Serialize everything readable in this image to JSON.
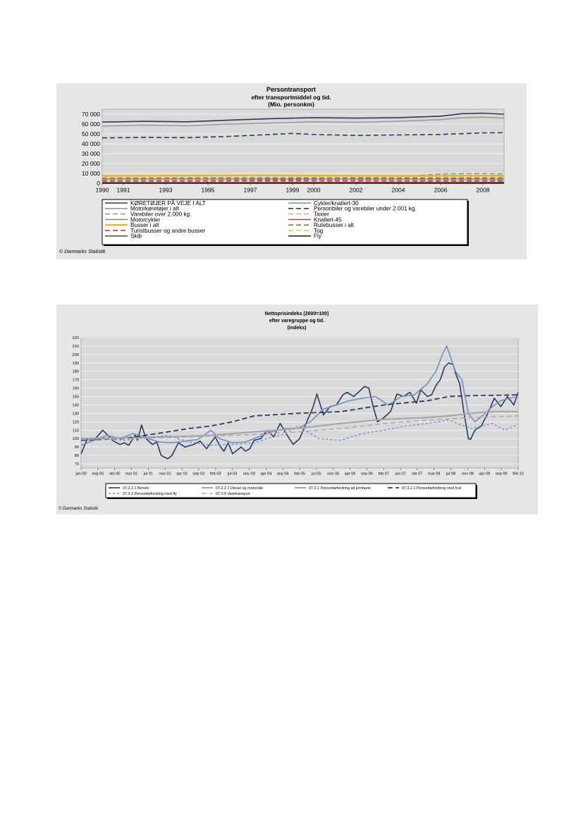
{
  "chart_data": [
    {
      "type": "line",
      "title": "Persontransport",
      "subtitle": "efter transportmiddel og tid.",
      "unit_label": "(Mio. personkm)",
      "xlabel": "",
      "ylabel": "",
      "x_ticks": [
        "1990",
        "1991",
        "1993",
        "1995",
        "1997",
        "1999",
        "2000",
        "2002",
        "2004",
        "2006",
        "2008"
      ],
      "y_ticks": [
        "70 000",
        "60 000",
        "50 000",
        "40 000",
        "30 000",
        "20 000",
        "10 000",
        "0"
      ],
      "xlim": [
        1990,
        2009
      ],
      "ylim": [
        0,
        75000
      ],
      "grid": true,
      "legend_position": "bottom",
      "credit": "© Danmarks Statistik",
      "series": [
        {
          "name": "KØRETØJER PÅ VEJE I ALT",
          "color": "#2b3a5c",
          "dash": "solid",
          "width": 1.6,
          "x": [
            1990,
            1992,
            1994,
            1996,
            1998,
            2000,
            2002,
            2004,
            2006,
            2007,
            2008,
            2009
          ],
          "y": [
            62000,
            62800,
            62300,
            64000,
            65500,
            66500,
            66000,
            66500,
            68000,
            70500,
            71000,
            70000
          ]
        },
        {
          "name": "Cykler/knallert-30",
          "color": "#6f8fc6",
          "dash": "solid",
          "width": 1.4,
          "x": [
            1990,
            1995,
            2000,
            2005,
            2009
          ],
          "y": [
            4300,
            4300,
            4200,
            4100,
            4000
          ]
        },
        {
          "name": "Motorkøretøjer i alt",
          "color": "#9a9a9a",
          "dash": "solid",
          "width": 1.6,
          "x": [
            1990,
            1992,
            1994,
            1996,
            1998,
            2000,
            2002,
            2004,
            2006,
            2007,
            2008,
            2009
          ],
          "y": [
            58000,
            59000,
            58300,
            60000,
            61000,
            62300,
            61800,
            62800,
            64500,
            66500,
            67000,
            66000
          ]
        },
        {
          "name": "Personbiler og varebiler under 2.001 kg.",
          "color": "#2b3a5c",
          "dash": "long",
          "width": 1.6,
          "x": [
            1990,
            1992,
            1994,
            1996,
            1998,
            1999,
            2000,
            2002,
            2004,
            2006,
            2008,
            2009
          ],
          "y": [
            46000,
            46500,
            46200,
            47500,
            49500,
            50500,
            49500,
            48500,
            49000,
            49500,
            51000,
            51200
          ]
        },
        {
          "name": "Varebiler over 2.000 kg.",
          "color": "#6f8fc6",
          "dash": "long",
          "width": 1.4,
          "x": [
            1990,
            1995,
            2000,
            2003,
            2005,
            2006,
            2008,
            2009
          ],
          "y": [
            1500,
            2500,
            4000,
            6000,
            8000,
            9500,
            9800,
            9500
          ]
        },
        {
          "name": "Taxier",
          "color": "#a8a8a8",
          "dash": "long",
          "width": 1.4,
          "x": [
            1990,
            1995,
            2000,
            2005,
            2009
          ],
          "y": [
            1400,
            1500,
            1500,
            1600,
            1600
          ]
        },
        {
          "name": "Motorcykler",
          "color": "#7f8c20",
          "dash": "solid",
          "width": 1.4,
          "x": [
            1990,
            1995,
            2000,
            2005,
            2009
          ],
          "y": [
            700,
            800,
            900,
            1000,
            1000
          ]
        },
        {
          "name": "Knallert-45",
          "color": "#d62a1a",
          "dash": "solid",
          "width": 1.4,
          "x": [
            1990,
            1995,
            2000,
            2005,
            2009
          ],
          "y": [
            300,
            400,
            600,
            500,
            400
          ]
        },
        {
          "name": "Busser i alt",
          "color": "#f0b010",
          "dash": "solid",
          "width": 2.2,
          "x": [
            1990,
            1994,
            1998,
            2000,
            2004,
            2008,
            2009
          ],
          "y": [
            7500,
            7800,
            8000,
            7800,
            7500,
            7800,
            7600
          ]
        },
        {
          "name": "Rutebusser i alt",
          "color": "#7a5a10",
          "dash": "long",
          "width": 1.4,
          "x": [
            1990,
            1995,
            2000,
            2005,
            2009
          ],
          "y": [
            5000,
            5200,
            5100,
            5000,
            5000
          ]
        },
        {
          "name": "Turistbusser og andre busser",
          "color": "#e02020",
          "dash": "long",
          "width": 1.4,
          "x": [
            1990,
            1995,
            2000,
            2005,
            2009
          ],
          "y": [
            2500,
            2600,
            2700,
            2500,
            2500
          ]
        },
        {
          "name": "Tog",
          "color": "#f0c040",
          "dash": "long",
          "width": 1.4,
          "x": [
            1990,
            1995,
            2000,
            2005,
            2009
          ],
          "y": [
            5800,
            6000,
            6200,
            6300,
            6300
          ]
        },
        {
          "name": "Skib",
          "color": "#333333",
          "dash": "solid",
          "width": 1.4,
          "x": [
            1990,
            2009
          ],
          "y": [
            150,
            150
          ]
        },
        {
          "name": "Fly",
          "color": "#000000",
          "dash": "solid",
          "width": 1.4,
          "x": [
            1990,
            2009
          ],
          "y": [
            50,
            50
          ]
        }
      ]
    },
    {
      "type": "line",
      "title": "Nettoprisindeks (2000=100)",
      "subtitle": "efter varegruppe og tid.",
      "unit_label": "(indeks)",
      "xlabel": "",
      "ylabel": "",
      "x_ticks": [
        "jan 00",
        "maj 00",
        "okt 00",
        "mar 01",
        "jul 01",
        "nov 01",
        "apr 02",
        "sep 02",
        "feb 03",
        "jul 03",
        "nov 03",
        "apr 04",
        "sep 04",
        "feb 05",
        "jul 05",
        "nov 05",
        "apr 06",
        "sep 06",
        "feb 07",
        "jun 07",
        "okt 07",
        "mar 08",
        "jul 08",
        "nov 08",
        "apr 09",
        "sep 09",
        "feb 10"
      ],
      "y_ticks": [
        "220",
        "210",
        "200",
        "190",
        "180",
        "170",
        "160",
        "150",
        "140",
        "130",
        "120",
        "110",
        "100",
        "90",
        "80",
        "70"
      ],
      "xlim": [
        2000.0,
        2010.1
      ],
      "ylim": [
        65,
        220
      ],
      "grid": true,
      "legend_position": "bottom",
      "credit": "© Danmarks Statistik",
      "series": [
        {
          "name": "07.2.2.1 Benzin",
          "color": "#2b3a5c",
          "dash": "solid",
          "width": 1.6,
          "x": [
            2000.0,
            2000.15,
            2000.3,
            2000.5,
            2000.6,
            2000.75,
            2000.9,
            2001.0,
            2001.1,
            2001.25,
            2001.3,
            2001.4,
            2001.5,
            2001.65,
            2001.75,
            2001.85,
            2002.0,
            2002.1,
            2002.25,
            2002.4,
            2002.6,
            2002.75,
            2002.9,
            2003.1,
            2003.2,
            2003.3,
            2003.4,
            2003.5,
            2003.7,
            2003.8,
            2003.9,
            2004.0,
            2004.15,
            2004.3,
            2004.45,
            2004.6,
            2004.75,
            2004.9,
            2005.05,
            2005.2,
            2005.35,
            2005.45,
            2005.6,
            2005.75,
            2005.9,
            2006.05,
            2006.15,
            2006.3,
            2006.45,
            2006.55,
            2006.65,
            2006.75,
            2006.85,
            2007.0,
            2007.15,
            2007.3,
            2007.45,
            2007.6,
            2007.75,
            2007.85,
            2008.0,
            2008.1,
            2008.2,
            2008.3,
            2008.4,
            2008.5,
            2008.6,
            2008.65,
            2008.75,
            2008.85,
            2008.95,
            2009.0,
            2009.1,
            2009.25,
            2009.4,
            2009.55,
            2009.7,
            2009.85,
            2010.0,
            2010.1
          ],
          "y": [
            82,
            100,
            98,
            110,
            105,
            97,
            93,
            95,
            92,
            104,
            98,
            116,
            100,
            93,
            96,
            80,
            76,
            80,
            95,
            90,
            93,
            97,
            88,
            102,
            92,
            85,
            95,
            82,
            90,
            85,
            88,
            98,
            100,
            110,
            102,
            118,
            105,
            93,
            100,
            118,
            136,
            153,
            128,
            138,
            140,
            152,
            155,
            150,
            157,
            162,
            160,
            138,
            120,
            125,
            132,
            153,
            150,
            155,
            142,
            158,
            150,
            152,
            163,
            170,
            185,
            190,
            188,
            178,
            165,
            130,
            100,
            99,
            110,
            115,
            130,
            148,
            138,
            150,
            140,
            155
          ]
        },
        {
          "name": "07.2.2.2 Diesel og motorolie",
          "color": "#6f8fc6",
          "dash": "solid",
          "width": 1.6,
          "x": [
            2000.0,
            2000.3,
            2000.6,
            2000.9,
            2001.2,
            2001.5,
            2001.8,
            2002.1,
            2002.4,
            2002.7,
            2003.0,
            2003.2,
            2003.5,
            2003.8,
            2004.1,
            2004.4,
            2004.7,
            2005.0,
            2005.3,
            2005.6,
            2005.9,
            2006.2,
            2006.5,
            2006.8,
            2007.1,
            2007.4,
            2007.7,
            2008.0,
            2008.2,
            2008.35,
            2008.45,
            2008.55,
            2008.65,
            2008.8,
            2008.95,
            2009.1,
            2009.3,
            2009.5,
            2009.7,
            2009.9,
            2010.1
          ],
          "y": [
            92,
            98,
            104,
            100,
            106,
            101,
            96,
            95,
            97,
            99,
            110,
            100,
            95,
            96,
            102,
            108,
            112,
            112,
            120,
            135,
            140,
            145,
            148,
            150,
            140,
            150,
            152,
            165,
            180,
            200,
            210,
            195,
            180,
            170,
            130,
            120,
            128,
            138,
            145,
            148,
            150
          ]
        },
        {
          "name": "07.3.1 Personbefordring ad jernbane",
          "color": "#a8a8a8",
          "dash": "solid",
          "width": 2.2,
          "x": [
            2000.0,
            2001.0,
            2002.0,
            2003.0,
            2004.0,
            2005.0,
            2006.0,
            2007.0,
            2008.0,
            2008.5,
            2009.0,
            2009.5,
            2010.1
          ],
          "y": [
            100,
            101,
            102,
            104,
            108,
            112,
            118,
            123,
            125,
            127,
            130,
            132,
            132
          ]
        },
        {
          "name": "07.3.2.1 Personbefordring med bus",
          "color": "#2b3a5c",
          "dash": "long",
          "width": 1.8,
          "x": [
            2000.0,
            2001.0,
            2001.5,
            2002.0,
            2002.5,
            2003.0,
            2003.5,
            2004.0,
            2005.0,
            2006.0,
            2007.0,
            2008.0,
            2008.5,
            2009.0,
            2010.1
          ],
          "y": [
            98,
            100,
            104,
            108,
            112,
            115,
            120,
            127,
            130,
            132,
            140,
            145,
            150,
            151,
            152
          ]
        },
        {
          "name": "07.3.3 Personbefordring med fly",
          "color": "#6f8fc6",
          "dash": "short",
          "width": 1.4,
          "x": [
            2000.0,
            2000.5,
            2001.0,
            2001.3,
            2001.7,
            2002.0,
            2002.5,
            2003.0,
            2003.5,
            2004.0,
            2004.3,
            2004.7,
            2005.0,
            2005.5,
            2006.0,
            2006.5,
            2007.0,
            2007.5,
            2008.0,
            2008.5,
            2009.0,
            2009.5,
            2009.8,
            2010.1
          ],
          "y": [
            100,
            100,
            98,
            100,
            102,
            104,
            96,
            92,
            93,
            95,
            100,
            105,
            115,
            100,
            98,
            106,
            110,
            115,
            118,
            122,
            112,
            118,
            110,
            117
          ]
        },
        {
          "name": "07.3.6 Varetransport",
          "color": "#a8a8a8",
          "dash": "long",
          "width": 1.4,
          "x": [
            2000.0,
            2001.0,
            2002.0,
            2003.0,
            2004.0,
            2005.0,
            2006.0,
            2007.0,
            2008.0,
            2009.0,
            2010.1
          ],
          "y": [
            99,
            100,
            101,
            103,
            105,
            108,
            112,
            118,
            122,
            125,
            127
          ]
        }
      ]
    }
  ]
}
